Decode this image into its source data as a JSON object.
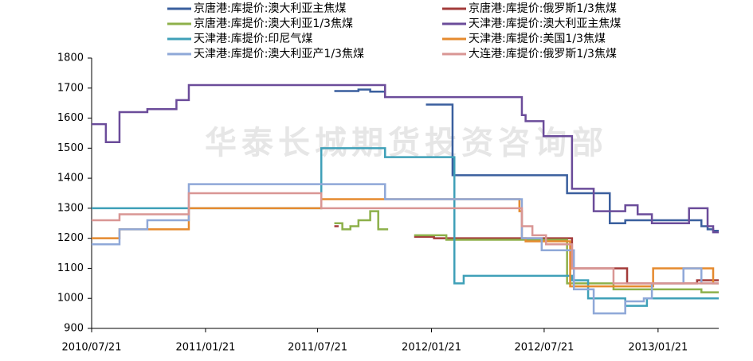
{
  "chart_data": {
    "type": "line",
    "step": true,
    "watermark": "华泰长城期货投资咨询部",
    "xlim": [
      "2010/07/21",
      "2013/04/29"
    ],
    "xticks": [
      "2010/07/21",
      "2011/01/21",
      "2011/07/21",
      "2012/01/21",
      "2012/07/21",
      "2013/01/21"
    ],
    "ylim": [
      900,
      1800
    ],
    "yticks": [
      900,
      1000,
      1100,
      1200,
      1300,
      1400,
      1500,
      1600,
      1700,
      1800
    ],
    "series": [
      {
        "name": "京唐港:库提价:澳大利亚主焦煤",
        "color": "#3a5f9e",
        "x": [
          "2011/08/17",
          "2011/09/25",
          "2011/10/14",
          "2011/11/07",
          "2012/01/12",
          "2012/02/24",
          "2012/08/27",
          "2012/11/04",
          "2012/11/29",
          "2013/04/01",
          "2013/04/11",
          "2013/04/20"
        ],
        "values": [
          1690,
          1695,
          1688,
          null,
          1645,
          1410,
          1350,
          1250,
          1260,
          1240,
          1230,
          1225
        ]
      },
      {
        "name": "京唐港:库提价:俄罗斯1/3焦煤",
        "color": "#a33b3a",
        "x": [
          "2011/08/17",
          "2011/08/24",
          "2011/12/24",
          "2012/01/25",
          "2012/09/04",
          "2012/12/02",
          "2013/03/25"
        ],
        "values": [
          1240,
          null,
          1205,
          1200,
          1100,
          1050,
          1060
        ]
      },
      {
        "name": "京唐港:库提价:澳大利亚1/3焦煤",
        "color": "#8db04a",
        "x": [
          "2011/08/17",
          "2011/08/30",
          "2011/09/12",
          "2011/09/25",
          "2011/10/14",
          "2011/10/27",
          "2011/11/12",
          "2011/12/24",
          "2012/02/14",
          "2012/08/27",
          "2012/11/10",
          "2013/04/01"
        ],
        "values": [
          1250,
          1230,
          1240,
          1260,
          1290,
          1230,
          null,
          1210,
          1195,
          1050,
          1030,
          1020
        ]
      },
      {
        "name": "天津港:库提价:澳大利亚主焦煤",
        "color": "#6b4c9a",
        "x": [
          "2010/07/21",
          "2010/08/13",
          "2010/09/04",
          "2010/10/19",
          "2010/12/05",
          "2010/12/25",
          "2011/11/07",
          "2012/06/15",
          "2012/06/21",
          "2012/07/20",
          "2012/09/04",
          "2012/10/09",
          "2012/11/29",
          "2012/12/19",
          "2013/01/11",
          "2013/03/12",
          "2013/04/11",
          "2013/04/20"
        ],
        "values": [
          1580,
          1520,
          1620,
          1630,
          1660,
          1710,
          1670,
          1610,
          1590,
          1540,
          1365,
          1290,
          1310,
          1280,
          1250,
          1300,
          1240,
          1220
        ]
      },
      {
        "name": "天津港:库提价:印尼气煤",
        "color": "#3fa0b8",
        "x": [
          "2010/07/21",
          "2011/07/27",
          "2011/11/07",
          "2012/02/27",
          "2012/03/13",
          "2012/09/04",
          "2012/09/30",
          "2012/11/29",
          "2013/01/03",
          "2013/04/07"
        ],
        "values": [
          1300,
          1500,
          1470,
          1050,
          1075,
          1060,
          1000,
          975,
          1000,
          1000
        ]
      },
      {
        "name": "天津港:库提价:美国1/3焦煤",
        "color": "#e58a2e",
        "x": [
          "2010/07/21",
          "2010/09/04",
          "2010/12/25",
          "2011/07/27",
          "2012/06/11",
          "2012/06/15",
          "2012/06/21",
          "2012/09/01",
          "2013/01/13",
          "2013/04/20"
        ],
        "values": [
          1200,
          1230,
          1300,
          1330,
          1290,
          1200,
          1190,
          1040,
          1100,
          1050
        ]
      },
      {
        "name": "天津港:库提价:澳大利亚产1/3焦煤",
        "color": "#8fa8d8",
        "x": [
          "2010/07/21",
          "2010/09/04",
          "2010/10/19",
          "2010/12/25",
          "2011/11/07",
          "2012/06/15",
          "2012/07/17",
          "2012/09/07",
          "2012/10/09",
          "2012/11/29",
          "2012/12/29",
          "2013/01/11",
          "2013/03/03",
          "2013/04/01"
        ],
        "values": [
          1180,
          1230,
          1260,
          1380,
          1330,
          1200,
          1160,
          1030,
          950,
          990,
          1000,
          1050,
          1100,
          1050
        ]
      },
      {
        "name": "大连港:库提价:俄罗斯1/3焦煤",
        "color": "#d99694",
        "x": [
          "2010/07/21",
          "2010/09/04",
          "2010/12/25",
          "2011/07/27",
          "2012/06/15",
          "2012/07/02",
          "2012/07/24",
          "2012/09/04",
          "2012/11/10"
        ],
        "values": [
          1260,
          1280,
          1350,
          1300,
          1240,
          1210,
          1180,
          1100,
          1050
        ]
      }
    ]
  }
}
